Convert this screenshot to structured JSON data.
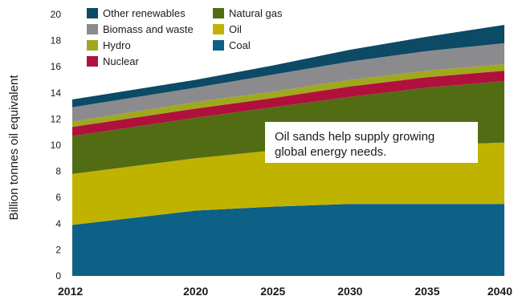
{
  "chart_data": {
    "type": "area",
    "stacked": true,
    "title": "",
    "xlabel": "",
    "ylabel": "Billion tonnes oil equivalent",
    "x": [
      2012,
      2020,
      2025,
      2030,
      2035,
      2040
    ],
    "x_tick_labels": [
      "2012",
      "2020",
      "2025",
      "2030",
      "2035",
      "2040"
    ],
    "xlim": [
      2012,
      2040
    ],
    "ylim": [
      0,
      20
    ],
    "y_ticks": [
      0,
      2,
      4,
      6,
      8,
      10,
      12,
      14,
      16,
      18,
      20
    ],
    "y_tick_labels": [
      "0",
      "2",
      "4",
      "6",
      "8",
      "10",
      "12",
      "14",
      "16",
      "18",
      "20"
    ],
    "grid": false,
    "legend_position": "top-left, inside plot",
    "series": [
      {
        "name": "Coal",
        "color": "#0d6187",
        "values": [
          3.9,
          5.0,
          5.3,
          5.5,
          5.5,
          5.5
        ]
      },
      {
        "name": "Oil",
        "color": "#c0b300",
        "values": [
          3.9,
          4.0,
          4.3,
          4.4,
          4.5,
          4.7
        ]
      },
      {
        "name": "Natural gas",
        "color": "#526c14",
        "values": [
          2.9,
          3.1,
          3.3,
          3.8,
          4.4,
          4.7
        ]
      },
      {
        "name": "Nuclear",
        "color": "#b0113c",
        "values": [
          0.7,
          0.7,
          0.7,
          0.8,
          0.8,
          0.8
        ]
      },
      {
        "name": "Hydro",
        "color": "#a0a81e",
        "values": [
          0.4,
          0.5,
          0.5,
          0.5,
          0.5,
          0.5
        ]
      },
      {
        "name": "Biomass and waste",
        "color": "#8b8b8d",
        "values": [
          1.1,
          1.1,
          1.3,
          1.4,
          1.5,
          1.6
        ]
      },
      {
        "name": "Other renewables",
        "color": "#0c4a66",
        "values": [
          0.6,
          0.6,
          0.7,
          0.9,
          1.1,
          1.4
        ]
      }
    ],
    "legend": [
      {
        "label": "Other renewables",
        "color": "#0c4a66"
      },
      {
        "label": "Natural gas",
        "color": "#526c14"
      },
      {
        "label": "Biomass and waste",
        "color": "#8b8b8d"
      },
      {
        "label": "Oil",
        "color": "#c0b300"
      },
      {
        "label": "Hydro",
        "color": "#a0a81e"
      },
      {
        "label": "Coal",
        "color": "#0d6187"
      },
      {
        "label": "Nuclear",
        "color": "#b0113c"
      }
    ],
    "annotation": "Oil sands help supply growing global energy needs."
  }
}
